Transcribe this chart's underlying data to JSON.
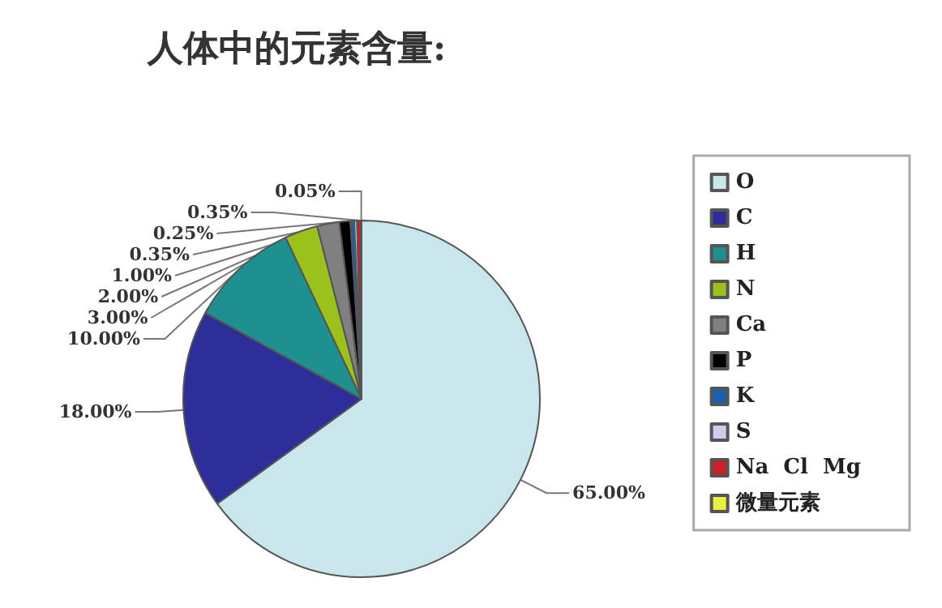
{
  "chart_data": {
    "type": "pie",
    "title": "人体中的元素含量:",
    "categories": [
      "O",
      "C",
      "H",
      "N",
      "Ca",
      "P",
      "K",
      "S",
      "Na  Cl  Mg",
      "微量元素"
    ],
    "values": [
      65,
      18,
      10,
      3,
      2,
      1,
      0.35,
      0.25,
      0.35,
      0.05
    ],
    "value_labels": [
      "65.00%",
      "18.00%",
      "10.00%",
      "3.00%",
      "2.00%",
      "1.00%",
      "0.35%",
      "0.25%",
      "0.35%",
      "0.05%"
    ],
    "colors": [
      "#c9e6ec",
      "#2e2e9a",
      "#1f9090",
      "#9bc21c",
      "#808080",
      "#000000",
      "#1a5fb0",
      "#ccccee",
      "#cc1f2a",
      "#eaf040"
    ],
    "legend": "right"
  }
}
